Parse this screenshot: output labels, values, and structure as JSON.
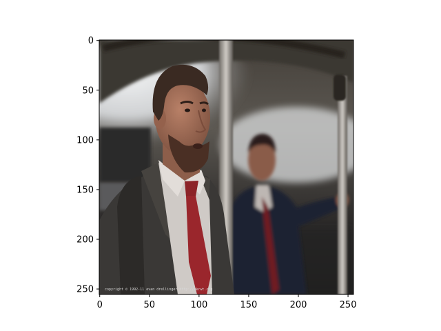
{
  "image_axes": {
    "xlim": [
      0,
      255
    ],
    "ylim": [
      255,
      0
    ],
    "x_ticks": [
      0,
      50,
      100,
      150,
      200,
      250
    ],
    "y_ticks": [
      0,
      50,
      100,
      150,
      200,
      250
    ],
    "x_tick_labels": [
      "0",
      "50",
      "100",
      "150",
      "200",
      "250"
    ],
    "y_tick_labels": [
      "0",
      "50",
      "100",
      "150",
      "200",
      "250"
    ]
  },
  "photo": {
    "caption": "copyright © 1992-11  evan drellinger  http://ekrwt.org",
    "colors": {
      "ceiling": "#3a3631",
      "window_glow": "#e6e8ea",
      "pole": "#8a8680",
      "skin": "#a2705a",
      "hair": "#3a2a22",
      "beard": "#4a2f24",
      "coat": "#3a3836",
      "shirt": "#cfcac6",
      "tie": "#8c2328",
      "suit_dark": "#1f2333"
    }
  }
}
